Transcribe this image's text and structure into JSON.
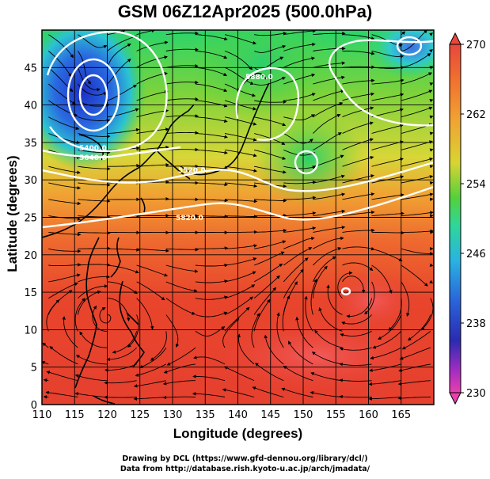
{
  "title": "GSM 06Z12Apr2025 (500.0hPa)",
  "axes": {
    "xlabel": "Longitude (degrees)",
    "ylabel": "Latitude  (degrees)",
    "xticks": [
      "110",
      "115",
      "120",
      "125",
      "130",
      "135",
      "140",
      "145",
      "150",
      "155",
      "160",
      "165"
    ],
    "yticks": [
      "0",
      "5",
      "10",
      "15",
      "20",
      "25",
      "30",
      "35",
      "40",
      "45"
    ]
  },
  "colorbar": {
    "labels": [
      "270",
      "262",
      "254",
      "246",
      "238",
      "230"
    ],
    "colors": [
      "#e8473c",
      "#f08a30",
      "#e6c833",
      "#4fd13b",
      "#2fd6b0",
      "#2aa7e0",
      "#2a55d6",
      "#2a2bb0",
      "#c42fc7",
      "#ea3fae"
    ]
  },
  "credits": {
    "line1": "Drawing by DCL (https://www.gfd-dennou.org/library/dcl/)",
    "line2": "Data from http://database.rish.kyoto-u.ac.jp/arch/jmadata/"
  },
  "contour_labels": [
    "5400.0",
    "5640.0",
    "5520.0",
    "5820.0",
    "5880.0"
  ],
  "chart_data": {
    "type": "heatmap",
    "title": "GSM 06Z12Apr2025 (500.0hPa)",
    "xlabel": "Longitude (degrees)",
    "ylabel": "Latitude  (degrees)",
    "xlim": [
      110,
      170
    ],
    "ylim": [
      0,
      50
    ],
    "colorbar_range": [
      230,
      270
    ],
    "colorbar_ticks": [
      230,
      238,
      246,
      254,
      262,
      270
    ],
    "features": {
      "cold_lows": [
        {
          "lon": 118,
          "lat": 43
        },
        {
          "lon": 166,
          "lat": 48
        }
      ],
      "warm_region_lat_below": 20,
      "streamlines": true,
      "height_contours": [
        5400.0,
        5520.0,
        5640.0,
        5820.0,
        5880.0
      ]
    }
  }
}
